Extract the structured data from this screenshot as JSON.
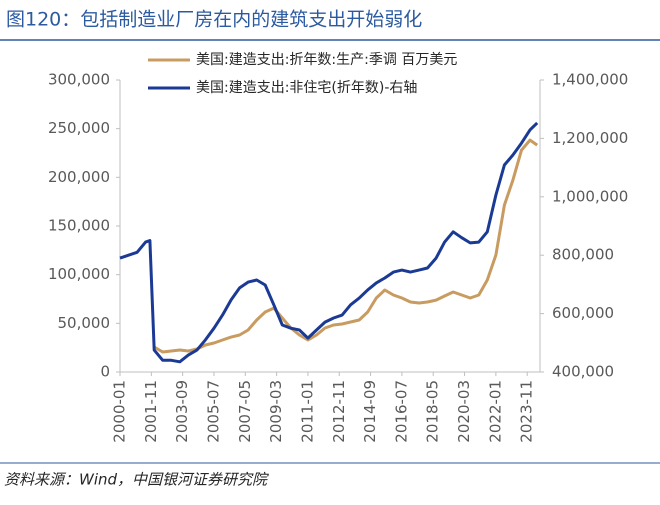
{
  "chart_data": {
    "type": "line",
    "title": "图120：包括制造业厂房在内的建筑支出开始弱化",
    "source": "资料来源：Wind，中国银河证券研究院",
    "x": [
      "2000-01",
      "2000-07",
      "2001-01",
      "2001-07",
      "2001-10",
      "2002-01",
      "2002-07",
      "2003-01",
      "2003-07",
      "2004-01",
      "2004-07",
      "2005-01",
      "2005-07",
      "2006-01",
      "2006-07",
      "2007-01",
      "2007-07",
      "2008-01",
      "2008-07",
      "2009-01",
      "2009-07",
      "2010-01",
      "2010-07",
      "2011-01",
      "2011-07",
      "2012-01",
      "2012-07",
      "2013-01",
      "2013-07",
      "2014-01",
      "2014-07",
      "2015-01",
      "2015-07",
      "2016-01",
      "2016-07",
      "2017-01",
      "2017-07",
      "2018-01",
      "2018-07",
      "2019-01",
      "2019-07",
      "2020-01",
      "2020-07",
      "2021-01",
      "2021-07",
      "2022-01",
      "2022-07",
      "2023-01",
      "2023-07",
      "2024-01",
      "2024-06"
    ],
    "series": [
      {
        "name": "美国:建造支出:折年数:生产:季调 百万美元",
        "color": "#c89b60",
        "axis": "y",
        "values": [
          null,
          null,
          null,
          null,
          null,
          25700,
          20500,
          21600,
          22600,
          21600,
          23600,
          27700,
          29800,
          32900,
          35900,
          38000,
          43100,
          53400,
          61600,
          65700,
          55500,
          45200,
          38000,
          32900,
          38000,
          45200,
          48300,
          49300,
          51400,
          53400,
          61600,
          76000,
          84200,
          79100,
          76000,
          71900,
          70900,
          71900,
          73900,
          78100,
          82200,
          79100,
          76000,
          79100,
          94500,
          120200,
          171500,
          197200,
          228000,
          238300,
          233100
        ]
      },
      {
        "name": "美国:建造支出:非住宅(折年数)-右轴",
        "color": "#1b3a94",
        "axis": "y2",
        "values": [
          790000,
          800000,
          810000,
          845000,
          850000,
          475000,
          440000,
          440000,
          435000,
          458000,
          475000,
          510000,
          550000,
          595000,
          647000,
          688000,
          708000,
          715000,
          698000,
          630000,
          561000,
          550000,
          544000,
          516000,
          544000,
          571000,
          585000,
          595000,
          630000,
          653000,
          681000,
          705000,
          722000,
          742000,
          749000,
          742000,
          749000,
          756000,
          790000,
          845000,
          880000,
          860000,
          842000,
          845000,
          880000,
          1006000,
          1109000,
          1143000,
          1184000,
          1229000,
          1253000
        ]
      }
    ],
    "xlim": [
      "2000-01",
      "2024-08"
    ],
    "xticks": [
      "2000-01",
      "2001-11",
      "2003-09",
      "2005-07",
      "2007-05",
      "2009-03",
      "2011-01",
      "2012-11",
      "2014-09",
      "2016-07",
      "2018-05",
      "2020-03",
      "2022-01",
      "2023-11"
    ],
    "ylim": [
      0,
      300000
    ],
    "yticks": [
      0,
      {
        "value": 50000,
        "label": "50,000"
      },
      {
        "value": 100000,
        "label": "100,000"
      },
      {
        "value": 150000,
        "label": "150,000"
      },
      {
        "value": 200000,
        "label": "200,000"
      },
      {
        "value": 250000,
        "label": "250,000"
      },
      {
        "value": 300000,
        "label": "300,000"
      }
    ],
    "y2lim": [
      400000,
      1400000
    ],
    "y2ticks": [
      {
        "value": 400000,
        "label": "400,000"
      },
      {
        "value": 600000,
        "label": "600,000"
      },
      {
        "value": 800000,
        "label": "800,000"
      },
      {
        "value": 1000000,
        "label": "1,000,000"
      },
      {
        "value": 1200000,
        "label": "1,200,000"
      },
      {
        "value": 1400000,
        "label": "1,400,000"
      }
    ],
    "grid": false,
    "legend": "upper left"
  }
}
